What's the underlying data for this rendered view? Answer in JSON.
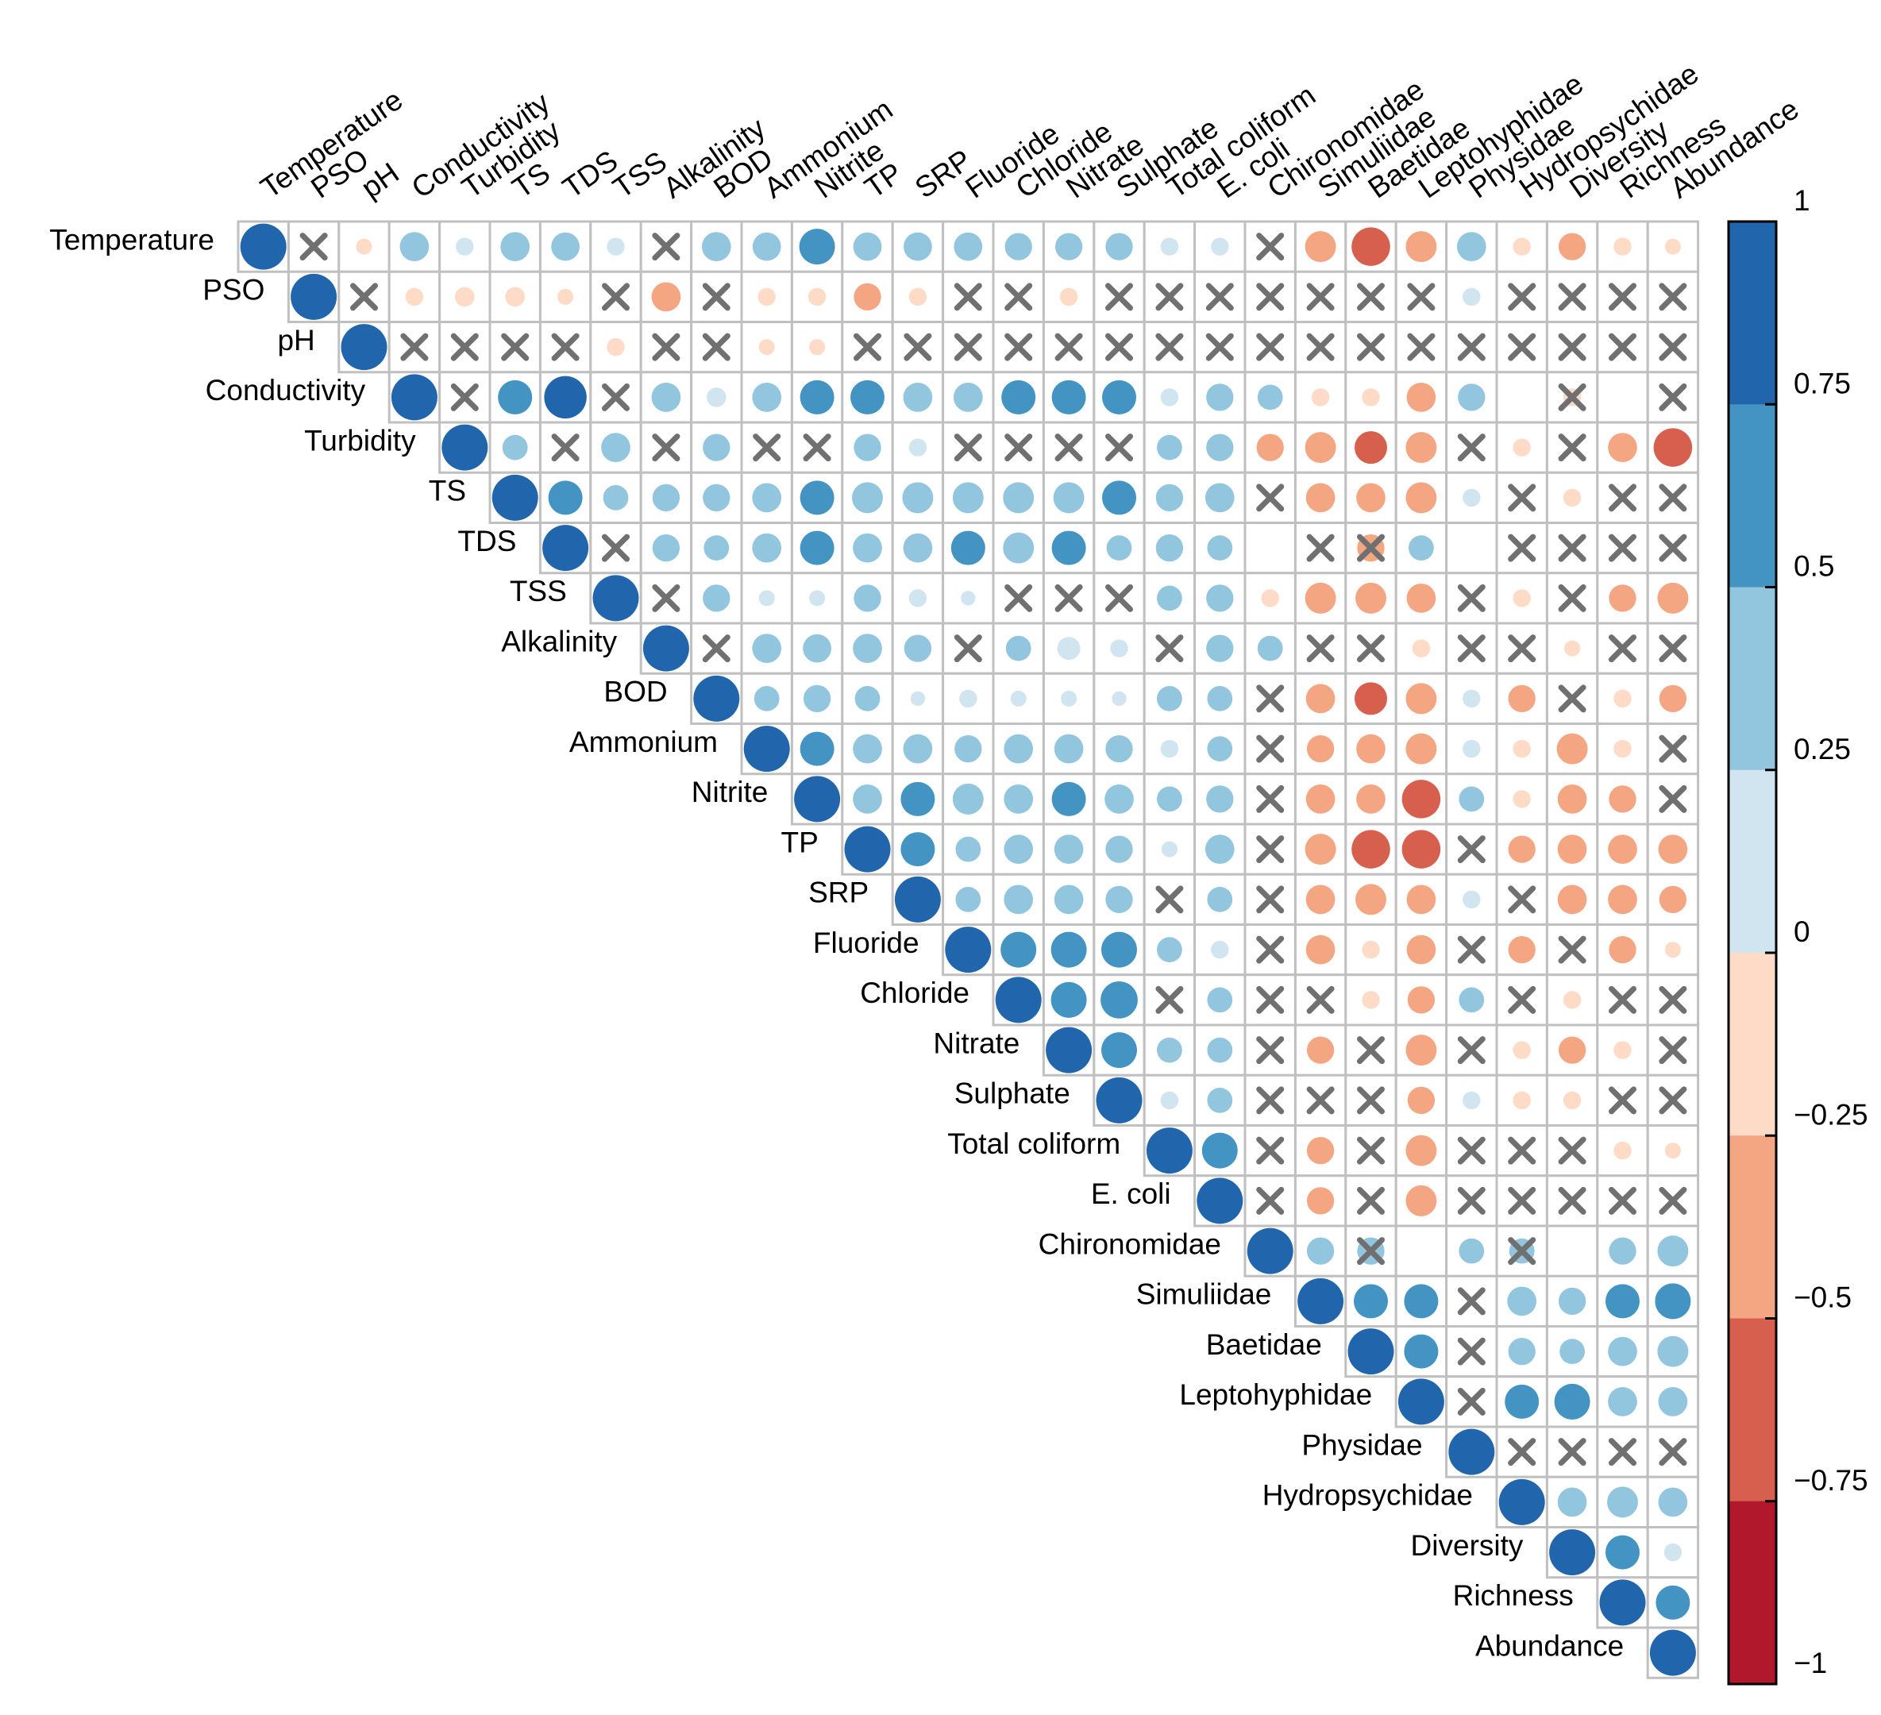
{
  "chart_data": {
    "type": "heatmap",
    "subtype": "correlation-upper-triangle",
    "title": "",
    "variables": [
      "Temperature",
      "PSO",
      "pH",
      "Conductivity",
      "Turbidity",
      "TS",
      "TDS",
      "TSS",
      "Alkalinity",
      "BOD",
      "Ammonium",
      "Nitrite",
      "TP",
      "SRP",
      "Fluoride",
      "Chloride",
      "Nitrate",
      "Sulphate",
      "Total coliform",
      "E. coli",
      "Chironomidae",
      "Simuliidae",
      "Baetidae",
      "Leptohyphidae",
      "Physidae",
      "Hydropsychidae",
      "Diversity",
      "Richness",
      "Abundance"
    ],
    "matrix_upper": [
      [
        1,
        0,
        -0.12,
        0.4,
        0.15,
        0.4,
        0.38,
        0.15,
        0,
        0.4,
        0.38,
        0.6,
        0.38,
        0.38,
        0.38,
        0.35,
        0.35,
        0.35,
        0.15,
        0.15,
        0,
        -0.45,
        -0.7,
        -0.45,
        0.4,
        -0.15,
        -0.35,
        -0.15,
        -0.12
      ],
      [
        1,
        0,
        -0.15,
        -0.18,
        -0.18,
        -0.12,
        0,
        -0.4,
        0,
        -0.15,
        -0.15,
        -0.35,
        -0.15,
        0,
        0,
        -0.15,
        0,
        0,
        0,
        0,
        0,
        0,
        0,
        0.15,
        0,
        0,
        0,
        0
      ],
      [
        1,
        0,
        0,
        0,
        0,
        -0.15,
        0,
        0,
        -0.12,
        -0.12,
        0,
        0,
        0,
        0,
        0,
        0,
        0,
        0,
        0,
        0,
        0,
        0,
        0,
        0,
        0,
        0,
        0
      ],
      [
        1,
        0,
        0.55,
        0.85,
        0,
        0.4,
        0.18,
        0.4,
        0.55,
        0.55,
        0.4,
        0.4,
        0.55,
        0.55,
        0.55,
        0.15,
        0.35,
        0.3,
        -0.15,
        -0.15,
        -0.4,
        0.35,
        0,
        -0.15,
        0,
        0
      ],
      [
        1,
        0.3,
        0,
        0.4,
        0,
        0.35,
        0,
        0,
        0.35,
        0.15,
        0,
        0,
        0,
        0,
        0.3,
        0.35,
        -0.35,
        -0.45,
        -0.5,
        -0.45,
        0,
        -0.15,
        0,
        -0.4,
        -0.7
      ],
      [
        1,
        0.55,
        0.3,
        0.35,
        0.35,
        0.4,
        0.55,
        0.45,
        0.45,
        0.45,
        0.45,
        0.45,
        0.55,
        0.35,
        0.4,
        0,
        -0.4,
        -0.4,
        -0.45,
        0.15,
        0,
        -0.15,
        0,
        0
      ],
      [
        1,
        0,
        0.35,
        0.3,
        0.4,
        0.55,
        0.4,
        0.4,
        0.55,
        0.45,
        0.55,
        0.3,
        0.35,
        0.3,
        0,
        0,
        -0.35,
        0.3,
        0,
        0,
        0,
        0
      ],
      [
        1,
        0,
        0.35,
        0.12,
        0.12,
        0.35,
        0.15,
        0.1,
        0,
        0,
        0,
        0.3,
        0.35,
        -0.15,
        -0.45,
        -0.45,
        -0.4,
        0,
        -0.15,
        0,
        -0.35,
        -0.45
      ],
      [
        1,
        0,
        0.4,
        0.38,
        0.4,
        0.35,
        0,
        0.3,
        0.25,
        0.15,
        0,
        0.35,
        0.3,
        0,
        0,
        -0.15,
        0,
        0,
        -0.12,
        0,
        0
      ],
      [
        1,
        0.3,
        0.35,
        0.3,
        0.1,
        0.15,
        0.12,
        0.12,
        0.1,
        0.3,
        0.3,
        0,
        -0.4,
        -0.5,
        -0.45,
        0.15,
        -0.35,
        0,
        -0.15,
        -0.35
      ],
      [
        1,
        0.55,
        0.4,
        0.4,
        0.35,
        0.4,
        0.4,
        0.35,
        0.15,
        0.3,
        0,
        -0.35,
        -0.4,
        -0.45,
        0.15,
        -0.15,
        -0.45,
        -0.15,
        0
      ],
      [
        1,
        0.4,
        0.55,
        0.45,
        0.4,
        0.55,
        0.4,
        0.3,
        0.35,
        0,
        -0.4,
        -0.4,
        -0.7,
        0.3,
        -0.15,
        -0.4,
        -0.35,
        0
      ],
      [
        1,
        0.55,
        0.3,
        0.4,
        0.4,
        0.35,
        0.12,
        0.4,
        0,
        -0.45,
        -0.7,
        -0.7,
        0,
        -0.35,
        -0.4,
        -0.4,
        -0.4
      ],
      [
        1,
        0.3,
        0.4,
        0.4,
        0.35,
        0,
        0.3,
        0,
        -0.4,
        -0.45,
        -0.4,
        0.15,
        0,
        -0.4,
        -0.4,
        -0.35
      ],
      [
        1,
        0.6,
        0.6,
        0.6,
        0.3,
        0.15,
        0,
        -0.4,
        -0.15,
        -0.4,
        0,
        -0.35,
        0,
        -0.35,
        -0.12
      ],
      [
        1,
        0.6,
        0.65,
        0,
        0.3,
        0,
        0,
        -0.15,
        -0.35,
        0.3,
        0,
        -0.15,
        0,
        0
      ],
      [
        1,
        0.6,
        0.3,
        0.3,
        0,
        -0.35,
        0,
        -0.45,
        0,
        -0.15,
        -0.35,
        -0.15,
        0
      ],
      [
        1,
        0.15,
        0.3,
        0,
        0,
        0,
        -0.35,
        0.15,
        -0.15,
        -0.15,
        0,
        0
      ],
      [
        1,
        0.6,
        0,
        -0.35,
        0,
        -0.45,
        0,
        0,
        0,
        -0.15,
        -0.12
      ],
      [
        1,
        0,
        -0.35,
        0,
        -0.45,
        0,
        0,
        0,
        0,
        0
      ],
      [
        1,
        0.35,
        0.35,
        0,
        0.3,
        0.3,
        0,
        0.35,
        0.45
      ],
      [
        1,
        0.55,
        0.55,
        0,
        0.4,
        0.35,
        0.55,
        0.6
      ],
      [
        1,
        0.55,
        0,
        0.35,
        0.3,
        0.4,
        0.45
      ],
      [
        1,
        0,
        0.55,
        0.6,
        0.4,
        0.4
      ],
      [
        1,
        0,
        0,
        0,
        0
      ],
      [
        1,
        0.4,
        0.45,
        0.4
      ],
      [
        1,
        0.55,
        0.15
      ],
      [
        1,
        0.55
      ],
      [
        1
      ]
    ],
    "crossed_upper": [
      [
        0,
        1,
        0,
        0,
        0,
        0,
        0,
        0,
        1,
        0,
        0,
        0,
        0,
        0,
        0,
        0,
        0,
        0,
        0,
        0,
        1,
        0,
        0,
        0,
        0,
        0,
        0,
        0,
        0
      ],
      [
        0,
        1,
        0,
        0,
        0,
        0,
        1,
        0,
        1,
        0,
        0,
        0,
        0,
        1,
        1,
        0,
        1,
        1,
        1,
        1,
        1,
        1,
        1,
        0,
        1,
        1,
        1,
        1
      ],
      [
        0,
        1,
        1,
        1,
        1,
        0,
        1,
        1,
        0,
        0,
        1,
        1,
        1,
        1,
        1,
        1,
        1,
        1,
        1,
        1,
        1,
        1,
        1,
        1,
        1,
        1,
        1
      ],
      [
        0,
        1,
        0,
        0,
        1,
        0,
        0,
        0,
        0,
        0,
        0,
        0,
        0,
        0,
        0,
        0,
        0,
        0,
        0,
        0,
        0,
        0,
        0,
        1,
        0,
        1,
        1
      ],
      [
        0,
        0,
        1,
        0,
        1,
        0,
        1,
        1,
        0,
        0,
        1,
        1,
        1,
        1,
        0,
        0,
        0,
        0,
        0,
        0,
        1,
        0,
        1,
        0,
        0
      ],
      [
        0,
        0,
        0,
        0,
        0,
        0,
        0,
        0,
        0,
        0,
        0,
        0,
        0,
        0,
        0,
        1,
        0,
        0,
        0,
        0,
        1,
        0,
        1,
        1
      ],
      [
        0,
        1,
        0,
        0,
        0,
        0,
        0,
        0,
        0,
        0,
        0,
        0,
        0,
        0,
        0,
        1,
        1,
        0,
        0,
        1,
        1,
        1,
        1
      ],
      [
        0,
        1,
        0,
        0,
        0,
        0,
        0,
        0,
        1,
        1,
        1,
        0,
        0,
        0,
        0,
        0,
        0,
        1,
        0,
        1,
        0,
        0
      ],
      [
        0,
        1,
        0,
        0,
        0,
        0,
        1,
        0,
        0,
        0,
        1,
        0,
        0,
        1,
        1,
        0,
        1,
        1,
        0,
        1,
        1
      ],
      [
        0,
        0,
        0,
        0,
        0,
        0,
        0,
        0,
        0,
        0,
        0,
        1,
        0,
        0,
        0,
        0,
        0,
        1,
        0,
        0
      ],
      [
        0,
        0,
        0,
        0,
        0,
        0,
        0,
        0,
        0,
        0,
        1,
        0,
        0,
        0,
        0,
        0,
        0,
        0,
        1
      ],
      [
        0,
        0,
        0,
        0,
        0,
        0,
        0,
        0,
        0,
        1,
        0,
        0,
        0,
        0,
        0,
        0,
        0,
        1
      ],
      [
        0,
        0,
        0,
        0,
        0,
        0,
        0,
        0,
        1,
        0,
        0,
        0,
        1,
        0,
        0,
        0,
        0
      ],
      [
        0,
        0,
        0,
        0,
        0,
        1,
        0,
        1,
        0,
        0,
        0,
        0,
        1,
        0,
        0,
        0
      ],
      [
        0,
        0,
        0,
        0,
        0,
        0,
        1,
        0,
        0,
        0,
        1,
        0,
        1,
        0,
        0
      ],
      [
        0,
        0,
        0,
        1,
        0,
        1,
        1,
        0,
        0,
        0,
        1,
        0,
        1,
        1
      ],
      [
        0,
        0,
        0,
        0,
        1,
        0,
        1,
        0,
        1,
        0,
        0,
        0,
        1
      ],
      [
        0,
        0,
        0,
        1,
        1,
        1,
        0,
        0,
        0,
        0,
        1,
        1
      ],
      [
        0,
        0,
        1,
        0,
        1,
        0,
        1,
        1,
        1,
        0,
        0
      ],
      [
        0,
        1,
        0,
        1,
        0,
        1,
        1,
        1,
        1,
        1
      ],
      [
        0,
        0,
        1,
        0,
        0,
        1,
        0,
        0
      ],
      [
        0,
        0,
        0,
        1,
        0,
        0,
        0,
        0
      ],
      [
        0,
        0,
        1,
        0,
        0,
        0,
        0
      ],
      [
        0,
        1,
        0,
        0,
        0,
        0
      ],
      [
        0,
        1,
        1,
        1,
        1
      ],
      [
        0,
        0,
        0,
        0
      ],
      [
        0,
        0,
        0
      ],
      [
        0,
        0
      ],
      [
        0
      ]
    ],
    "colorbar": {
      "ticks": [
        "1",
        "0.75",
        "0.5",
        "0.25",
        "0",
        "−0.25",
        "−0.5",
        "−0.75",
        "−1"
      ],
      "colors": [
        "#2166ac",
        "#4393c3",
        "#92c5de",
        "#d1e5f0",
        "#fddbc7",
        "#f4a582",
        "#d6604d",
        "#b2182b"
      ]
    },
    "legend": "right",
    "xlabel": "",
    "ylabel": ""
  }
}
